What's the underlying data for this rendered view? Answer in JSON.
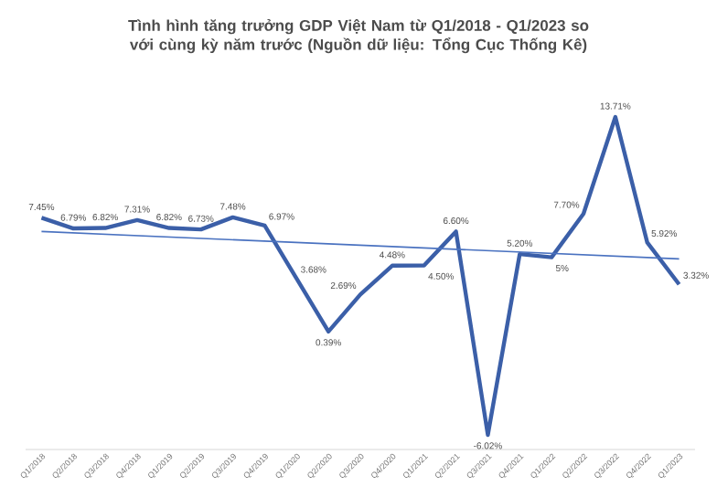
{
  "chart_data": {
    "type": "line",
    "title": "Tình hình tăng trưởng GDP Việt Nam từ Q1/2018 - Q1/2023 so với cùng kỳ năm trước (Nguồn dữ liệu: Tổng Cục Thống Kê)",
    "categories": [
      "Q1/2018",
      "Q2/2018",
      "Q3/2018",
      "Q4/2018",
      "Q1/2019",
      "Q2/2019",
      "Q3/2019",
      "Q4/2019",
      "Q1/2020",
      "Q2/2020",
      "Q3/2020",
      "Q4/2020",
      "Q1/2021",
      "Q2/2021",
      "Q3/2021",
      "Q4/2021",
      "Q1/2022",
      "Q2/2022",
      "Q3/2022",
      "Q4/2022",
      "Q1/2023"
    ],
    "series": [
      {
        "color": "#3b5fa8",
        "values": [
          7.45,
          6.79,
          6.82,
          7.31,
          6.82,
          6.73,
          7.48,
          6.97,
          3.68,
          0.39,
          2.69,
          4.48,
          4.5,
          6.6,
          -6.02,
          5.2,
          5,
          7.7,
          13.71,
          5.92,
          3.32
        ],
        "value_labels": [
          "7.45%",
          "6.79%",
          "6.82%",
          "7.31%",
          "6.82%",
          "6.73%",
          "7.48%",
          "6.97%",
          "3.68%",
          "0.39%",
          "2.69%",
          "4.48%",
          "4.50%",
          "6.60%",
          "-6.02%",
          "5.20%",
          "5%",
          "7.70%",
          "13.71%",
          "5.92%",
          "3.32%"
        ]
      },
      {
        "type": "line",
        "color": "#4a72c0",
        "x": [
          "Q1/2018",
          "Q1/2023"
        ],
        "values": [
          6.6,
          4.9
        ]
      }
    ],
    "tick_labels": "x",
    "marker": "none"
  }
}
